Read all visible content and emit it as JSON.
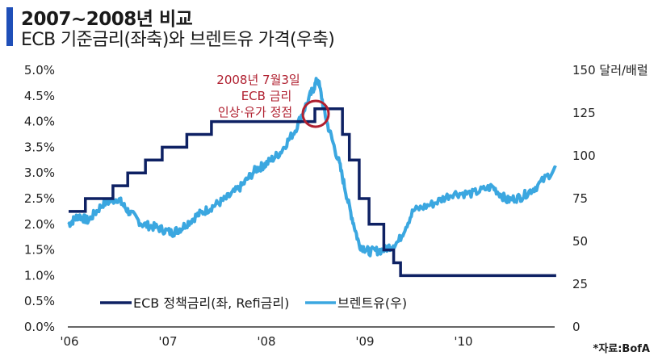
{
  "header": {
    "title": "2007~2008년 비교",
    "subtitle": "ECB 기준금리(좌축)와 브렌트유 가격(우축)"
  },
  "annotation": {
    "lines": [
      "2008년 7월3일",
      "ECB 금리",
      "인상·유가 정점"
    ],
    "color": "#b02030"
  },
  "source": "*자료:BofA",
  "colors": {
    "ecb": "#0e2163",
    "brent": "#3ba7e0",
    "accent": "#1f4fb8"
  },
  "chart_data": {
    "type": "line",
    "title": "2007~2008년 비교 — ECB 기준금리(좌축)와 브렌트유 가격(우축)",
    "xlabel": "",
    "x_ticks": [
      "'06",
      "'07",
      "'08",
      "'09",
      "'10"
    ],
    "x_range": [
      2006.0,
      2011.0
    ],
    "left_axis": {
      "label": "%",
      "ylim": [
        0,
        5.0
      ],
      "ticks": [
        "5.0%",
        "4.5%",
        "4.0%",
        "3.5%",
        "3.0%",
        "2.5%",
        "2.0%",
        "1.5%",
        "1.0%",
        "0.5%",
        "0.0%"
      ]
    },
    "right_axis": {
      "label": "150 달러/배럴",
      "ylim": [
        0,
        150
      ],
      "ticks": [
        "150 달러/배럴",
        "125",
        "100",
        "75",
        "50",
        "25",
        "0"
      ]
    },
    "legend": [
      "ECB 정책금리(좌, Refi금리)",
      "브렌트유(우)"
    ],
    "legend_position": "bottom-inside",
    "grid": false,
    "series": [
      {
        "name": "ECB 정책금리(좌, Refi금리)",
        "axis": "left",
        "step": true,
        "points": [
          [
            2006.0,
            2.25
          ],
          [
            2006.17,
            2.5
          ],
          [
            2006.45,
            2.75
          ],
          [
            2006.6,
            3.0
          ],
          [
            2006.78,
            3.25
          ],
          [
            2006.95,
            3.5
          ],
          [
            2007.2,
            3.75
          ],
          [
            2007.45,
            4.0
          ],
          [
            2008.5,
            4.25
          ],
          [
            2008.78,
            3.75
          ],
          [
            2008.85,
            3.25
          ],
          [
            2008.95,
            2.5
          ],
          [
            2009.05,
            2.0
          ],
          [
            2009.2,
            1.5
          ],
          [
            2009.3,
            1.25
          ],
          [
            2009.37,
            1.0
          ],
          [
            2010.95,
            1.0
          ]
        ]
      },
      {
        "name": "브렌트유(우)",
        "axis": "right",
        "points": [
          [
            2006.0,
            60
          ],
          [
            2006.1,
            65
          ],
          [
            2006.2,
            62
          ],
          [
            2006.35,
            72
          ],
          [
            2006.5,
            75
          ],
          [
            2006.6,
            68
          ],
          [
            2006.75,
            60
          ],
          [
            2006.9,
            58
          ],
          [
            2007.05,
            55
          ],
          [
            2007.15,
            58
          ],
          [
            2007.3,
            65
          ],
          [
            2007.45,
            70
          ],
          [
            2007.6,
            75
          ],
          [
            2007.75,
            82
          ],
          [
            2007.9,
            92
          ],
          [
            2008.0,
            95
          ],
          [
            2008.15,
            102
          ],
          [
            2008.3,
            115
          ],
          [
            2008.45,
            135
          ],
          [
            2008.53,
            145
          ],
          [
            2008.62,
            120
          ],
          [
            2008.75,
            95
          ],
          [
            2008.85,
            70
          ],
          [
            2008.95,
            48
          ],
          [
            2009.05,
            44
          ],
          [
            2009.2,
            45
          ],
          [
            2009.35,
            50
          ],
          [
            2009.5,
            68
          ],
          [
            2009.7,
            72
          ],
          [
            2009.9,
            78
          ],
          [
            2010.1,
            78
          ],
          [
            2010.3,
            82
          ],
          [
            2010.45,
            74
          ],
          [
            2010.6,
            76
          ],
          [
            2010.75,
            82
          ],
          [
            2010.95,
            93
          ]
        ]
      }
    ]
  }
}
